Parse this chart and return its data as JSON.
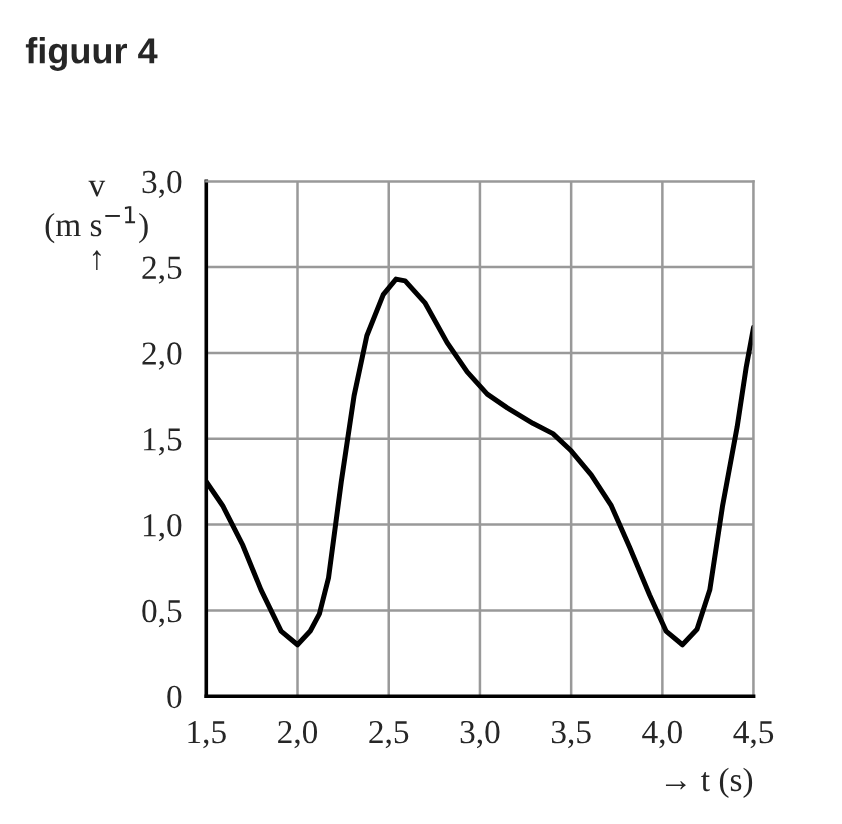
{
  "chart_data": {
    "type": "line",
    "title": "figuur 4",
    "ylabel": "v\n(m s$^{−1}$)\n↑",
    "xlabel": "→ t (s)",
    "series": [
      {
        "color": "#000000",
        "x": [
          1.5,
          1.59,
          1.7,
          1.8,
          1.91,
          2.0,
          2.07,
          2.12,
          2.17,
          2.24,
          2.31,
          2.38,
          2.47,
          2.54,
          2.59,
          2.7,
          2.82,
          2.93,
          3.04,
          3.15,
          3.29,
          3.4,
          3.5,
          3.61,
          3.72,
          3.82,
          3.93,
          4.02,
          4.11,
          4.19,
          4.26,
          4.33,
          4.41,
          4.46,
          4.5
        ],
        "values": [
          1.25,
          1.11,
          0.88,
          0.62,
          0.38,
          0.3,
          0.38,
          0.48,
          0.69,
          1.25,
          1.75,
          2.1,
          2.34,
          2.43,
          2.42,
          2.29,
          2.06,
          1.89,
          1.76,
          1.68,
          1.59,
          1.53,
          1.43,
          1.29,
          1.11,
          0.87,
          0.59,
          0.38,
          0.3,
          0.39,
          0.62,
          1.11,
          1.57,
          1.92,
          2.15
        ]
      }
    ],
    "xlim": [
      1.5,
      4.5
    ],
    "ylim": [
      0,
      3.0
    ],
    "xticks": [
      {
        "value": 1.5,
        "label": "1,5"
      },
      {
        "value": 2.0,
        "label": "2,0"
      },
      {
        "value": 2.5,
        "label": "2,5"
      },
      {
        "value": 3.0,
        "label": "3,0"
      },
      {
        "value": 3.5,
        "label": "3,5"
      },
      {
        "value": 4.0,
        "label": "4,0"
      },
      {
        "value": 4.5,
        "label": "4,5"
      }
    ],
    "yticks": [
      0,
      {
        "value": 0.5,
        "label": "0,5"
      },
      {
        "value": 1.0,
        "label": "1,0"
      },
      {
        "value": 1.5,
        "label": "1,5"
      },
      {
        "value": 2.0,
        "label": "2,0"
      },
      {
        "value": 2.5,
        "label": "2,5"
      },
      {
        "value": 3.0,
        "label": "3,0"
      }
    ],
    "grid": true,
    "legend": false,
    "marker": "none",
    "line_style": "solid"
  }
}
